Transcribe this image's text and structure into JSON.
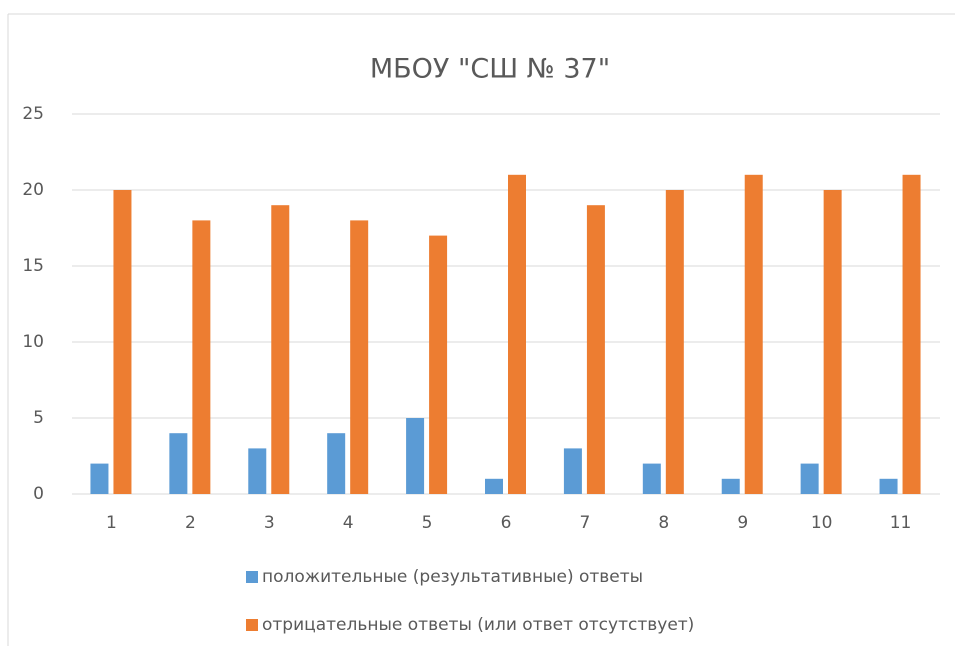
{
  "chart_data": {
    "type": "bar",
    "title": "МБОУ \"СШ № 37\"",
    "categories": [
      "1",
      "2",
      "3",
      "4",
      "5",
      "6",
      "7",
      "8",
      "9",
      "10",
      "11"
    ],
    "series": [
      {
        "name": "положительные (результативные) ответы",
        "color": "#5b9bd5",
        "values": [
          2,
          4,
          3,
          4,
          5,
          1,
          3,
          2,
          1,
          2,
          1
        ]
      },
      {
        "name": "отрицательные ответы (или ответ отсутствует)",
        "color": "#ed7d31",
        "values": [
          20,
          18,
          19,
          18,
          17,
          21,
          19,
          20,
          21,
          20,
          21
        ]
      }
    ],
    "ylim": [
      0,
      25
    ],
    "yticks": [
      0,
      5,
      10,
      15,
      20,
      25
    ],
    "grid": true,
    "legend": "bottom"
  }
}
